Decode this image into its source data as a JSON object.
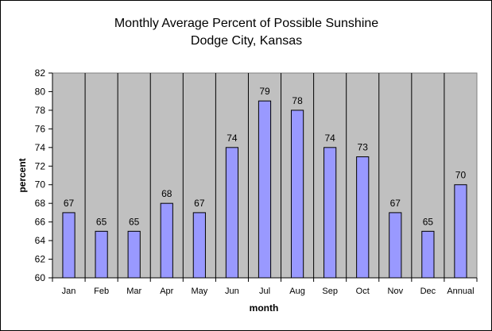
{
  "chart_data": {
    "type": "bar",
    "title": "Monthly Average Percent of Possible Sunshine",
    "subtitle": "Dodge City, Kansas",
    "xlabel": "month",
    "ylabel": "percent",
    "categories": [
      "Jan",
      "Feb",
      "Mar",
      "Apr",
      "May",
      "Jun",
      "Jul",
      "Aug",
      "Sep",
      "Oct",
      "Nov",
      "Dec",
      "Annual"
    ],
    "values": [
      67,
      65,
      65,
      68,
      67,
      74,
      79,
      78,
      74,
      73,
      67,
      65,
      70
    ],
    "ylim": [
      60,
      82
    ],
    "yticks": [
      60,
      62,
      64,
      66,
      68,
      70,
      72,
      74,
      76,
      78,
      80,
      82
    ],
    "grid": "vertical category dividers",
    "legend": "none",
    "colors": {
      "plot_background": "#c0c0c0",
      "bar_fill": "#9999ff",
      "bar_stroke": "#000000"
    }
  }
}
